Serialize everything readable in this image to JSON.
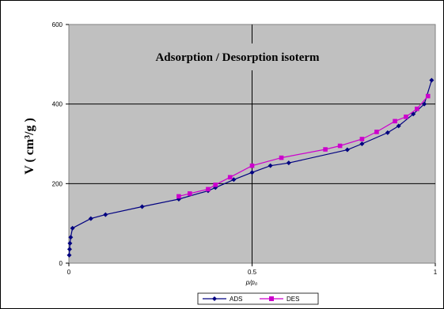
{
  "chart_data": {
    "type": "line",
    "title": "Adsorption / Desorption isoterm",
    "xlabel": "p/p₀",
    "ylabel": "V ( cm³/g )",
    "xlim": [
      0,
      1
    ],
    "ylim": [
      0,
      600
    ],
    "x_ticks": [
      "0",
      "0.5",
      "1"
    ],
    "y_ticks": [
      "0",
      "200",
      "400",
      "600"
    ],
    "grid": true,
    "legend_position": "bottom",
    "background": "#c0c0c0",
    "series": [
      {
        "name": "ADS",
        "color": "#000080",
        "marker": "diamond",
        "points": [
          [
            0.001,
            20
          ],
          [
            0.002,
            35
          ],
          [
            0.003,
            50
          ],
          [
            0.005,
            65
          ],
          [
            0.01,
            88
          ],
          [
            0.06,
            112
          ],
          [
            0.1,
            122
          ],
          [
            0.2,
            142
          ],
          [
            0.3,
            161
          ],
          [
            0.38,
            182
          ],
          [
            0.4,
            190
          ],
          [
            0.45,
            210
          ],
          [
            0.5,
            228
          ],
          [
            0.55,
            245
          ],
          [
            0.6,
            252
          ],
          [
            0.76,
            285
          ],
          [
            0.8,
            300
          ],
          [
            0.87,
            328
          ],
          [
            0.9,
            345
          ],
          [
            0.94,
            375
          ],
          [
            0.97,
            400
          ],
          [
            0.99,
            460
          ]
        ]
      },
      {
        "name": "DES",
        "color": "#cc00cc",
        "marker": "square",
        "points": [
          [
            0.3,
            168
          ],
          [
            0.33,
            175
          ],
          [
            0.38,
            186
          ],
          [
            0.4,
            197
          ],
          [
            0.44,
            216
          ],
          [
            0.5,
            245
          ],
          [
            0.58,
            265
          ],
          [
            0.7,
            286
          ],
          [
            0.74,
            295
          ],
          [
            0.8,
            312
          ],
          [
            0.84,
            330
          ],
          [
            0.89,
            357
          ],
          [
            0.92,
            368
          ],
          [
            0.95,
            388
          ],
          [
            0.98,
            420
          ]
        ]
      }
    ]
  }
}
